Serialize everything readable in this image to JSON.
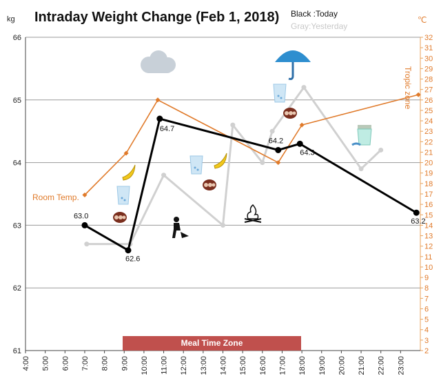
{
  "chart_data": {
    "type": "line",
    "title": "Intraday Weight Change (Feb 1, 2018)",
    "legend_black": "Black :Today",
    "legend_gray": "Gray:Yesterday",
    "ylabel_left": "kg",
    "ylabel_right": "℃",
    "ylim_left": [
      61,
      66
    ],
    "yticks_left": [
      "61",
      "62",
      "63",
      "64",
      "65",
      "66"
    ],
    "ylim_right": [
      2,
      32
    ],
    "yticks_right": [
      "2",
      "3",
      "4",
      "5",
      "6",
      "7",
      "8",
      "9",
      "10",
      "11",
      "12",
      "13",
      "14",
      "15",
      "16",
      "17",
      "18",
      "19",
      "20",
      "21",
      "22",
      "23",
      "24",
      "25",
      "26",
      "27",
      "28",
      "29",
      "30",
      "31",
      "32"
    ],
    "xlim": [
      4,
      24
    ],
    "xticks": [
      "4:00",
      "5:00",
      "6:00",
      "7:00",
      "8:00",
      "9:00",
      "10:00",
      "11:00",
      "12:00",
      "13:00",
      "14:00",
      "15:00",
      "16:00",
      "17:00",
      "18:00",
      "19:00",
      "20:00",
      "21:00",
      "22:00",
      "23:00"
    ],
    "grid": "horizontal",
    "series": [
      {
        "name": "Today",
        "color": "#000000",
        "points": [
          [
            7.0,
            63.0
          ],
          [
            9.2,
            62.6
          ],
          [
            10.8,
            64.7
          ],
          [
            16.8,
            64.2
          ],
          [
            17.9,
            64.3
          ],
          [
            23.8,
            63.2
          ]
        ],
        "labels": [
          "63.0",
          "62.6",
          "64.7",
          "64.2",
          "64.3",
          "63.2"
        ]
      },
      {
        "name": "Yesterday",
        "color": "#d0d0d0",
        "points": [
          [
            7.1,
            62.7
          ],
          [
            9.3,
            62.7
          ],
          [
            11.0,
            63.8
          ],
          [
            14.0,
            63.0
          ],
          [
            14.5,
            64.6
          ],
          [
            16.0,
            64.0
          ],
          [
            16.5,
            64.5
          ],
          [
            18.1,
            65.2
          ],
          [
            21.0,
            63.9
          ],
          [
            22.0,
            64.2
          ]
        ]
      },
      {
        "name": "Room Temp.",
        "color": "#e07a2a",
        "axis": "right",
        "points": [
          [
            7.0,
            16.9
          ],
          [
            9.1,
            20.9
          ],
          [
            10.7,
            26.0
          ],
          [
            16.8,
            20.0
          ],
          [
            18.0,
            23.6
          ],
          [
            23.9,
            26.5
          ]
        ]
      }
    ],
    "annotations": {
      "room_temp": "Room Temp.",
      "tropic_zone": "Tropic zone",
      "meal_zone": "Meal Time Zone"
    }
  },
  "icons": [
    "cloud-icon",
    "umbrella-icon",
    "banana-icon",
    "water-glass-icon",
    "snack-icon",
    "gardening-icon",
    "campfire-icon",
    "yogurt-icon"
  ]
}
